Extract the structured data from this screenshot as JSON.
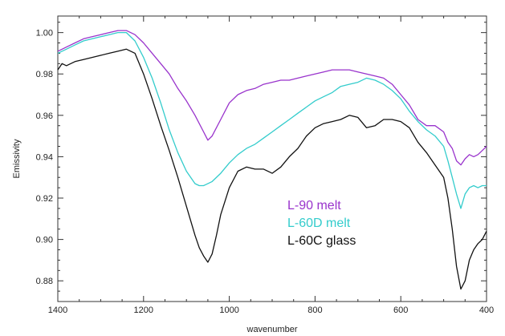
{
  "chart_data": {
    "type": "line",
    "title": "",
    "xlabel": "wavenumber",
    "ylabel": "Emissivity",
    "xlim": [
      1400,
      400
    ],
    "ylim": [
      0.87,
      1.008
    ],
    "x_reversed": true,
    "x_ticks": [
      1400,
      1200,
      1000,
      800,
      600,
      400
    ],
    "x_tick_labels": [
      "1400",
      "1200",
      "1000",
      "800",
      "600",
      "400"
    ],
    "y_ticks": [
      0.88,
      0.9,
      0.92,
      0.94,
      0.96,
      0.98,
      1.0
    ],
    "y_tick_labels": [
      "0.88",
      "0.90",
      "0.92",
      "0.94",
      "0.96",
      "0.98",
      "1.00"
    ],
    "grid": false,
    "legend_position": "center-right",
    "series": [
      {
        "name": "L-90 melt",
        "color": "#9933cc",
        "x": [
          1400,
          1380,
          1360,
          1340,
          1320,
          1300,
          1280,
          1260,
          1240,
          1220,
          1200,
          1180,
          1160,
          1140,
          1120,
          1100,
          1080,
          1060,
          1050,
          1040,
          1020,
          1000,
          980,
          960,
          940,
          920,
          900,
          880,
          860,
          840,
          820,
          800,
          780,
          760,
          740,
          720,
          700,
          680,
          660,
          640,
          620,
          600,
          580,
          560,
          540,
          520,
          500,
          490,
          480,
          470,
          460,
          450,
          440,
          430,
          420,
          410,
          400
        ],
        "y": [
          0.991,
          0.993,
          0.995,
          0.997,
          0.998,
          0.999,
          1.0,
          1.001,
          1.001,
          0.999,
          0.995,
          0.99,
          0.985,
          0.98,
          0.973,
          0.967,
          0.96,
          0.952,
          0.948,
          0.95,
          0.958,
          0.966,
          0.97,
          0.972,
          0.973,
          0.975,
          0.976,
          0.977,
          0.977,
          0.978,
          0.979,
          0.98,
          0.981,
          0.982,
          0.982,
          0.982,
          0.981,
          0.98,
          0.979,
          0.978,
          0.975,
          0.97,
          0.965,
          0.958,
          0.955,
          0.955,
          0.952,
          0.947,
          0.944,
          0.938,
          0.936,
          0.939,
          0.941,
          0.94,
          0.941,
          0.943,
          0.945
        ]
      },
      {
        "name": "L-60D melt",
        "color": "#33cccc",
        "x": [
          1400,
          1380,
          1360,
          1340,
          1320,
          1300,
          1280,
          1260,
          1240,
          1220,
          1200,
          1180,
          1160,
          1140,
          1120,
          1100,
          1080,
          1070,
          1060,
          1040,
          1020,
          1000,
          980,
          960,
          940,
          920,
          900,
          880,
          860,
          840,
          820,
          800,
          780,
          760,
          740,
          720,
          700,
          680,
          660,
          640,
          620,
          600,
          580,
          560,
          540,
          520,
          500,
          490,
          480,
          470,
          460,
          450,
          440,
          430,
          420,
          410,
          400
        ],
        "y": [
          0.99,
          0.992,
          0.994,
          0.996,
          0.997,
          0.998,
          0.999,
          1.0,
          1.0,
          0.996,
          0.988,
          0.978,
          0.966,
          0.953,
          0.942,
          0.933,
          0.927,
          0.926,
          0.926,
          0.928,
          0.932,
          0.937,
          0.941,
          0.944,
          0.946,
          0.949,
          0.952,
          0.955,
          0.958,
          0.961,
          0.964,
          0.967,
          0.969,
          0.971,
          0.974,
          0.975,
          0.976,
          0.978,
          0.977,
          0.975,
          0.972,
          0.968,
          0.962,
          0.957,
          0.953,
          0.95,
          0.945,
          0.938,
          0.93,
          0.922,
          0.915,
          0.922,
          0.925,
          0.926,
          0.925,
          0.926,
          0.926
        ]
      },
      {
        "name": "L-60C glass",
        "color": "#111111",
        "x": [
          1400,
          1390,
          1380,
          1360,
          1340,
          1320,
          1300,
          1280,
          1260,
          1240,
          1220,
          1200,
          1180,
          1160,
          1140,
          1120,
          1100,
          1080,
          1070,
          1060,
          1050,
          1040,
          1030,
          1020,
          1000,
          980,
          960,
          940,
          920,
          900,
          880,
          860,
          840,
          820,
          800,
          780,
          760,
          740,
          720,
          700,
          680,
          660,
          640,
          620,
          600,
          580,
          560,
          540,
          520,
          500,
          490,
          480,
          470,
          460,
          450,
          440,
          430,
          420,
          410,
          400
        ],
        "y": [
          0.982,
          0.985,
          0.984,
          0.986,
          0.987,
          0.988,
          0.989,
          0.99,
          0.991,
          0.992,
          0.99,
          0.98,
          0.968,
          0.955,
          0.943,
          0.93,
          0.916,
          0.902,
          0.896,
          0.892,
          0.889,
          0.893,
          0.902,
          0.912,
          0.925,
          0.933,
          0.935,
          0.934,
          0.934,
          0.932,
          0.935,
          0.94,
          0.944,
          0.95,
          0.954,
          0.956,
          0.957,
          0.958,
          0.96,
          0.959,
          0.954,
          0.955,
          0.958,
          0.958,
          0.957,
          0.954,
          0.947,
          0.942,
          0.936,
          0.93,
          0.92,
          0.905,
          0.887,
          0.876,
          0.88,
          0.89,
          0.895,
          0.898,
          0.9,
          0.904
        ]
      }
    ]
  }
}
